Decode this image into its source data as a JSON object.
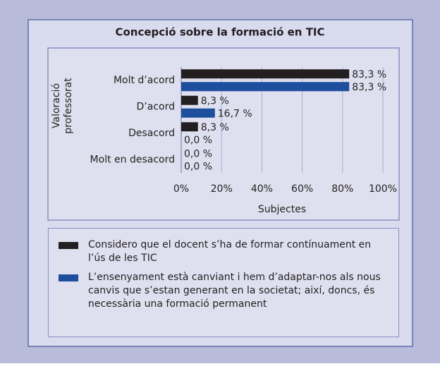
{
  "chart_data": {
    "type": "barh",
    "title": "Concepció sobre la formació en TIC",
    "ylabel": [
      "Valoració",
      "professorat"
    ],
    "xlabel": "Subjectes",
    "categories": [
      "Molt d’acord",
      "D’acord",
      "Desacord",
      "Molt en desacord"
    ],
    "series": [
      {
        "name": "Considero que el docent s’ha de formar contínuament en l’ús de les TIC",
        "color": "#231f20",
        "values": [
          83.3,
          8.3,
          8.3,
          0
        ],
        "value_labels": [
          "83,3 %",
          "8,3 %",
          "8,3 %",
          "0,0 %"
        ]
      },
      {
        "name": "L’ensenyament està canviant i hem d’adaptar-nos als nous canvis que s’estan generant en la societat; així, doncs, és necessària una formació permanent",
        "color": "#1d4f9e",
        "values": [
          83.3,
          16.7,
          0,
          0
        ],
        "value_labels": [
          "83,3 %",
          "16,7 %",
          "0,0 %",
          "0,0 %"
        ]
      }
    ],
    "xlim": [
      0,
      100
    ],
    "xticks": [
      {
        "value": 0,
        "label": "0%"
      },
      {
        "value": 20,
        "label": "20%"
      },
      {
        "value": 40,
        "label": "40%"
      },
      {
        "value": 60,
        "label": "60%"
      },
      {
        "value": 80,
        "label": "80%"
      },
      {
        "value": 100,
        "label": "100%"
      }
    ],
    "grid": true
  }
}
